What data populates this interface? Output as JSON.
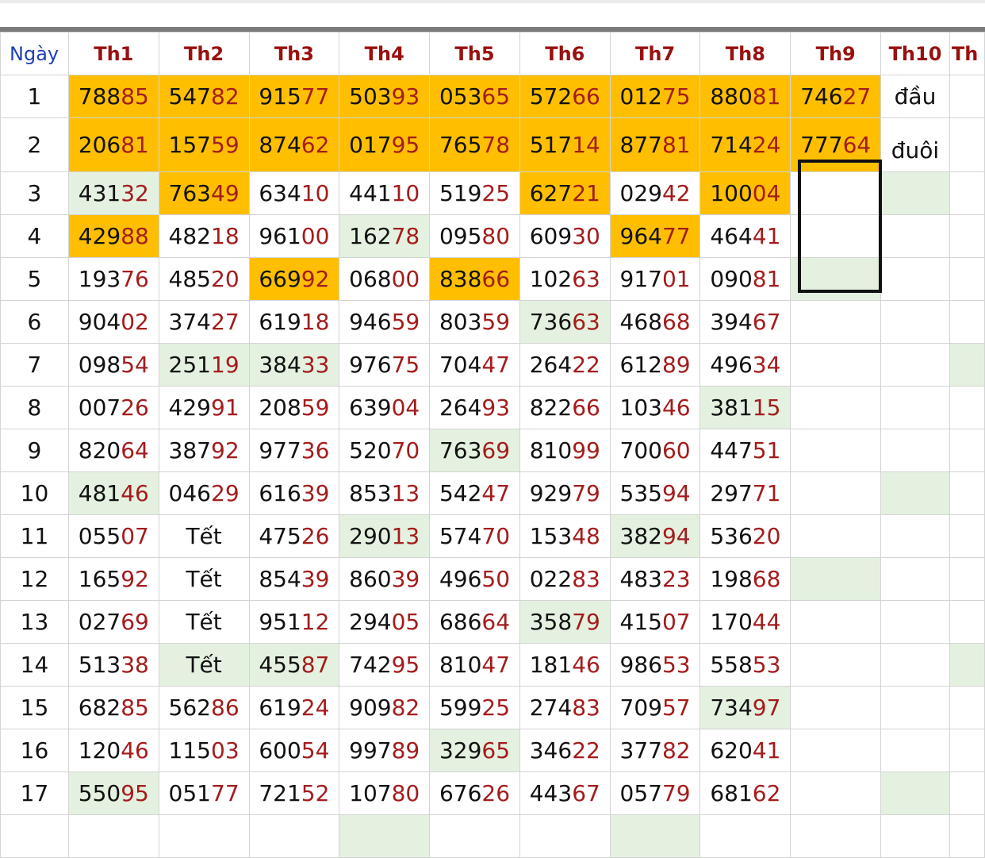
{
  "header": {
    "day_label": "Ngày",
    "months": [
      "Th1",
      "Th2",
      "Th3",
      "Th4",
      "Th5",
      "Th6",
      "Th7",
      "Th8",
      "Th9",
      "Th10",
      "Th"
    ]
  },
  "notes": {
    "dau": "đầu",
    "duoi": "đuôi"
  },
  "colors": {
    "highlight": "#ffbf00",
    "green": "#e4f1e0",
    "tail_red": "#a41c1c",
    "day_blue": "#1f3fb5"
  },
  "rows": [
    {
      "day": "1",
      "cells": [
        {
          "v": "78885",
          "s": "h"
        },
        {
          "v": "54782",
          "s": "h"
        },
        {
          "v": "91577",
          "s": "h"
        },
        {
          "v": "50393",
          "s": "h"
        },
        {
          "v": "05365",
          "s": "h"
        },
        {
          "v": "57266",
          "s": "h"
        },
        {
          "v": "01275",
          "s": "h"
        },
        {
          "v": "88081",
          "s": "h"
        },
        {
          "v": "74627",
          "s": "h"
        }
      ],
      "th10": {
        "note": "dau"
      },
      "th11": ""
    },
    {
      "day": "2",
      "cells": [
        {
          "v": "20681",
          "s": "h"
        },
        {
          "v": "15759",
          "s": "h"
        },
        {
          "v": "87462",
          "s": "h"
        },
        {
          "v": "01795",
          "s": "h"
        },
        {
          "v": "76578",
          "s": "h"
        },
        {
          "v": "51714",
          "s": "h"
        },
        {
          "v": "87781",
          "s": "h"
        },
        {
          "v": "71424",
          "s": "h"
        },
        {
          "v": "77764",
          "s": "h"
        }
      ],
      "th10": {
        "note": "duoi"
      },
      "th11": ""
    },
    {
      "day": "3",
      "cells": [
        {
          "v": "43132",
          "s": "g"
        },
        {
          "v": "76349",
          "s": "h"
        },
        {
          "v": "63410",
          "s": ""
        },
        {
          "v": "44110",
          "s": ""
        },
        {
          "v": "51925",
          "s": ""
        },
        {
          "v": "62721",
          "s": "h"
        },
        {
          "v": "02942",
          "s": ""
        },
        {
          "v": "10004",
          "s": "h"
        },
        {
          "v": "",
          "s": ""
        }
      ],
      "th10": {
        "s": "g"
      },
      "th11": ""
    },
    {
      "day": "4",
      "cells": [
        {
          "v": "42988",
          "s": "h"
        },
        {
          "v": "48218",
          "s": ""
        },
        {
          "v": "96100",
          "s": ""
        },
        {
          "v": "16278",
          "s": "g"
        },
        {
          "v": "09580",
          "s": ""
        },
        {
          "v": "60930",
          "s": ""
        },
        {
          "v": "96477",
          "s": "h"
        },
        {
          "v": "46441",
          "s": ""
        },
        {
          "v": "",
          "s": ""
        }
      ],
      "th10": {
        "s": ""
      },
      "th11": ""
    },
    {
      "day": "5",
      "cells": [
        {
          "v": "19376",
          "s": ""
        },
        {
          "v": "48520",
          "s": ""
        },
        {
          "v": "66992",
          "s": "h"
        },
        {
          "v": "06800",
          "s": ""
        },
        {
          "v": "83866",
          "s": "h"
        },
        {
          "v": "10263",
          "s": ""
        },
        {
          "v": "91701",
          "s": ""
        },
        {
          "v": "09081",
          "s": ""
        },
        {
          "v": "",
          "s": "g"
        }
      ],
      "th10": {
        "s": ""
      },
      "th11": ""
    },
    {
      "day": "6",
      "cells": [
        {
          "v": "90402",
          "s": ""
        },
        {
          "v": "37427",
          "s": ""
        },
        {
          "v": "61918",
          "s": ""
        },
        {
          "v": "94659",
          "s": ""
        },
        {
          "v": "80359",
          "s": ""
        },
        {
          "v": "73663",
          "s": "g"
        },
        {
          "v": "46868",
          "s": ""
        },
        {
          "v": "39467",
          "s": ""
        },
        {
          "v": "",
          "s": ""
        }
      ],
      "th10": {
        "s": ""
      },
      "th11": ""
    },
    {
      "day": "7",
      "cells": [
        {
          "v": "09854",
          "s": ""
        },
        {
          "v": "25119",
          "s": "g"
        },
        {
          "v": "38433",
          "s": "g"
        },
        {
          "v": "97675",
          "s": ""
        },
        {
          "v": "70447",
          "s": ""
        },
        {
          "v": "26422",
          "s": ""
        },
        {
          "v": "61289",
          "s": ""
        },
        {
          "v": "49634",
          "s": ""
        },
        {
          "v": "",
          "s": ""
        }
      ],
      "th10": {
        "s": ""
      },
      "th11": "g"
    },
    {
      "day": "8",
      "cells": [
        {
          "v": "00726",
          "s": ""
        },
        {
          "v": "42991",
          "s": ""
        },
        {
          "v": "20859",
          "s": ""
        },
        {
          "v": "63904",
          "s": ""
        },
        {
          "v": "26493",
          "s": ""
        },
        {
          "v": "82266",
          "s": ""
        },
        {
          "v": "10346",
          "s": ""
        },
        {
          "v": "38115",
          "s": "g"
        },
        {
          "v": "",
          "s": ""
        }
      ],
      "th10": {
        "s": ""
      },
      "th11": ""
    },
    {
      "day": "9",
      "cells": [
        {
          "v": "82064",
          "s": ""
        },
        {
          "v": "38792",
          "s": ""
        },
        {
          "v": "97736",
          "s": ""
        },
        {
          "v": "52070",
          "s": ""
        },
        {
          "v": "76369",
          "s": "g"
        },
        {
          "v": "81099",
          "s": ""
        },
        {
          "v": "70060",
          "s": ""
        },
        {
          "v": "44751",
          "s": ""
        },
        {
          "v": "",
          "s": ""
        }
      ],
      "th10": {
        "s": ""
      },
      "th11": ""
    },
    {
      "day": "10",
      "cells": [
        {
          "v": "48146",
          "s": "g"
        },
        {
          "v": "04629",
          "s": ""
        },
        {
          "v": "61639",
          "s": ""
        },
        {
          "v": "85313",
          "s": ""
        },
        {
          "v": "54247",
          "s": ""
        },
        {
          "v": "92979",
          "s": ""
        },
        {
          "v": "53594",
          "s": ""
        },
        {
          "v": "29771",
          "s": ""
        },
        {
          "v": "",
          "s": ""
        }
      ],
      "th10": {
        "s": "g"
      },
      "th11": ""
    },
    {
      "day": "11",
      "cells": [
        {
          "v": "05507",
          "s": ""
        },
        {
          "v": "Tết",
          "s": "",
          "t": 1
        },
        {
          "v": "47526",
          "s": ""
        },
        {
          "v": "29013",
          "s": "g"
        },
        {
          "v": "57470",
          "s": ""
        },
        {
          "v": "15348",
          "s": ""
        },
        {
          "v": "38294",
          "s": "g"
        },
        {
          "v": "53620",
          "s": ""
        },
        {
          "v": "",
          "s": ""
        }
      ],
      "th10": {
        "s": ""
      },
      "th11": ""
    },
    {
      "day": "12",
      "cells": [
        {
          "v": "16592",
          "s": ""
        },
        {
          "v": "Tết",
          "s": "",
          "t": 1
        },
        {
          "v": "85439",
          "s": ""
        },
        {
          "v": "86039",
          "s": ""
        },
        {
          "v": "49650",
          "s": ""
        },
        {
          "v": "02283",
          "s": ""
        },
        {
          "v": "48323",
          "s": ""
        },
        {
          "v": "19868",
          "s": ""
        },
        {
          "v": "",
          "s": "g"
        }
      ],
      "th10": {
        "s": ""
      },
      "th11": ""
    },
    {
      "day": "13",
      "cells": [
        {
          "v": "02769",
          "s": ""
        },
        {
          "v": "Tết",
          "s": "",
          "t": 1
        },
        {
          "v": "95112",
          "s": ""
        },
        {
          "v": "29405",
          "s": ""
        },
        {
          "v": "68664",
          "s": ""
        },
        {
          "v": "35879",
          "s": "g"
        },
        {
          "v": "41507",
          "s": ""
        },
        {
          "v": "17044",
          "s": ""
        },
        {
          "v": "",
          "s": ""
        }
      ],
      "th10": {
        "s": ""
      },
      "th11": ""
    },
    {
      "day": "14",
      "cells": [
        {
          "v": "51338",
          "s": ""
        },
        {
          "v": "Tết",
          "s": "g",
          "t": 1
        },
        {
          "v": "45587",
          "s": "g"
        },
        {
          "v": "74295",
          "s": ""
        },
        {
          "v": "81047",
          "s": ""
        },
        {
          "v": "18146",
          "s": ""
        },
        {
          "v": "98653",
          "s": ""
        },
        {
          "v": "55853",
          "s": ""
        },
        {
          "v": "",
          "s": ""
        }
      ],
      "th10": {
        "s": ""
      },
      "th11": "g"
    },
    {
      "day": "15",
      "cells": [
        {
          "v": "68285",
          "s": ""
        },
        {
          "v": "56286",
          "s": ""
        },
        {
          "v": "61924",
          "s": ""
        },
        {
          "v": "90982",
          "s": ""
        },
        {
          "v": "59925",
          "s": ""
        },
        {
          "v": "27483",
          "s": ""
        },
        {
          "v": "70957",
          "s": ""
        },
        {
          "v": "73497",
          "s": "g"
        },
        {
          "v": "",
          "s": ""
        }
      ],
      "th10": {
        "s": ""
      },
      "th11": ""
    },
    {
      "day": "16",
      "cells": [
        {
          "v": "12046",
          "s": ""
        },
        {
          "v": "11503",
          "s": ""
        },
        {
          "v": "60054",
          "s": ""
        },
        {
          "v": "99789",
          "s": ""
        },
        {
          "v": "32965",
          "s": "g"
        },
        {
          "v": "34622",
          "s": ""
        },
        {
          "v": "37782",
          "s": ""
        },
        {
          "v": "62041",
          "s": ""
        },
        {
          "v": "",
          "s": ""
        }
      ],
      "th10": {
        "s": ""
      },
      "th11": ""
    },
    {
      "day": "17",
      "cells": [
        {
          "v": "55095",
          "s": "g"
        },
        {
          "v": "05177",
          "s": ""
        },
        {
          "v": "72152",
          "s": ""
        },
        {
          "v": "10780",
          "s": ""
        },
        {
          "v": "67626",
          "s": ""
        },
        {
          "v": "44367",
          "s": ""
        },
        {
          "v": "05779",
          "s": ""
        },
        {
          "v": "68162",
          "s": ""
        },
        {
          "v": "",
          "s": ""
        }
      ],
      "th10": {
        "s": "g"
      },
      "th11": ""
    },
    {
      "day": "",
      "cells": [
        {
          "v": "",
          "s": ""
        },
        {
          "v": "",
          "s": ""
        },
        {
          "v": "",
          "s": ""
        },
        {
          "v": "",
          "s": "g"
        },
        {
          "v": "",
          "s": ""
        },
        {
          "v": "",
          "s": ""
        },
        {
          "v": "",
          "s": "g"
        },
        {
          "v": "",
          "s": ""
        },
        {
          "v": "",
          "s": ""
        }
      ],
      "th10": {
        "s": ""
      },
      "th11": ""
    }
  ]
}
